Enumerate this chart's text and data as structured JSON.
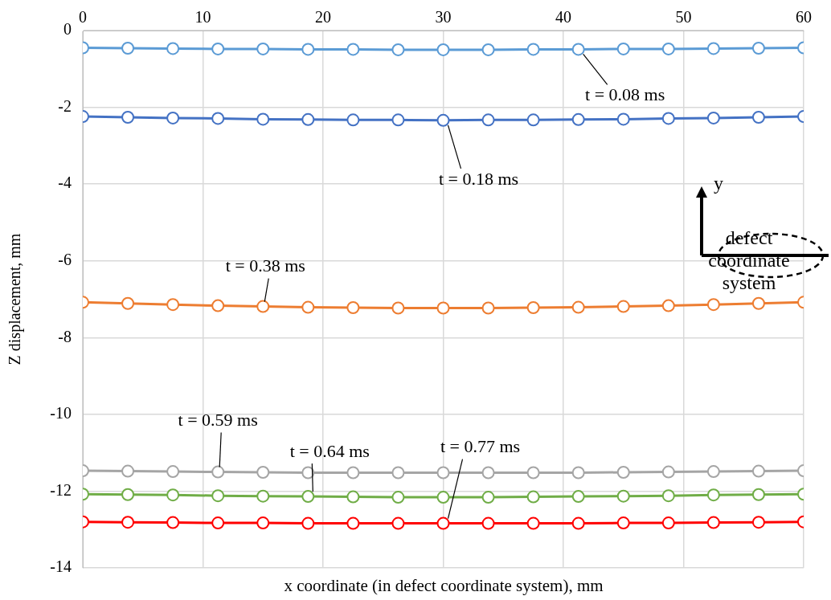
{
  "chart_data": {
    "type": "line",
    "xlabel": "x coordinate (in defect coordinate system), mm",
    "ylabel": "Z displacement, mm",
    "x": [
      0,
      3.75,
      7.5,
      11.25,
      15,
      18.75,
      22.5,
      26.25,
      30,
      33.75,
      37.5,
      41.25,
      45,
      48.75,
      52.5,
      56.25,
      60
    ],
    "xlim": [
      0,
      60
    ],
    "xticks": [
      0,
      10,
      20,
      30,
      40,
      50,
      60
    ],
    "ylim": [
      -14,
      0
    ],
    "yticks": [
      -14,
      -12,
      -10,
      -8,
      -6,
      -4,
      -2,
      0
    ],
    "grid": true,
    "legend": false,
    "marker": "circle",
    "line_style": "solid",
    "series": [
      {
        "name": "t = 0.08 ms",
        "color": "#5b9bd5",
        "values": [
          -0.45,
          -0.46,
          -0.47,
          -0.48,
          -0.48,
          -0.49,
          -0.49,
          -0.5,
          -0.5,
          -0.5,
          -0.49,
          -0.49,
          -0.48,
          -0.48,
          -0.47,
          -0.46,
          -0.45
        ]
      },
      {
        "name": "t = 0.18 ms",
        "color": "#4472c4",
        "values": [
          -2.24,
          -2.26,
          -2.28,
          -2.29,
          -2.31,
          -2.32,
          -2.33,
          -2.33,
          -2.34,
          -2.33,
          -2.33,
          -2.32,
          -2.31,
          -2.29,
          -2.28,
          -2.26,
          -2.24
        ]
      },
      {
        "name": "t = 0.38 ms",
        "color": "#ed7d31",
        "values": [
          -7.08,
          -7.11,
          -7.14,
          -7.17,
          -7.19,
          -7.21,
          -7.22,
          -7.23,
          -7.23,
          -7.23,
          -7.22,
          -7.21,
          -7.19,
          -7.17,
          -7.14,
          -7.11,
          -7.08
        ]
      },
      {
        "name": "t = 0.59 ms",
        "color": "#a5a5a5",
        "values": [
          -11.47,
          -11.48,
          -11.49,
          -11.5,
          -11.51,
          -11.52,
          -11.52,
          -11.52,
          -11.52,
          -11.52,
          -11.52,
          -11.52,
          -11.51,
          -11.5,
          -11.49,
          -11.48,
          -11.47
        ]
      },
      {
        "name": "t = 0.64 ms",
        "color": "#70ad47",
        "values": [
          -12.08,
          -12.09,
          -12.1,
          -12.12,
          -12.13,
          -12.14,
          -12.15,
          -12.16,
          -12.16,
          -12.16,
          -12.15,
          -12.14,
          -12.13,
          -12.12,
          -12.1,
          -12.09,
          -12.08
        ]
      },
      {
        "name": "t = 0.77 ms",
        "color": "#ff0000",
        "values": [
          -12.8,
          -12.81,
          -12.82,
          -12.83,
          -12.83,
          -12.84,
          -12.84,
          -12.84,
          -12.84,
          -12.84,
          -12.84,
          -12.84,
          -12.83,
          -12.83,
          -12.82,
          -12.81,
          -12.8
        ]
      }
    ],
    "annotations": [
      "y",
      "defect coordinate system"
    ]
  }
}
